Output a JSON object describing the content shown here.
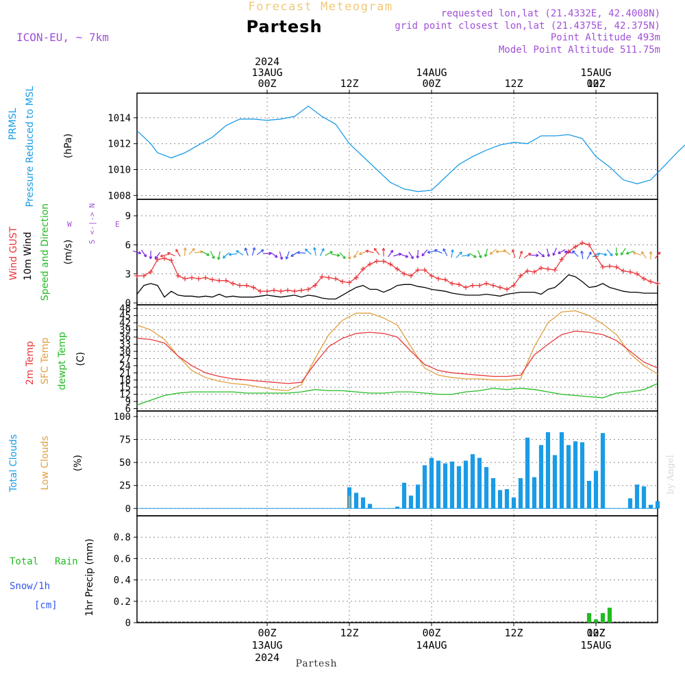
{
  "header": {
    "subtitle": "Forecast Meteogram",
    "location": "Partesh",
    "model": "ICON-EU, ~ 7km",
    "requested": "requested lon,lat (21.4332E, 42.4008N)",
    "grid_point": "grid point closest lon,lat (21.4375E, 42.375N)",
    "point_altitude": "Point Altitude 493m",
    "model_altitude": "Model Point Altitude 511.75m",
    "footer_location": "Partesh",
    "watermark": "by Angel"
  },
  "colors": {
    "pressure": "#1a9be6",
    "gust": "#e8383c",
    "wind": "#000000",
    "temp": "#e8383c",
    "sfc": "#e0a040",
    "dewpt": "#22bb22",
    "clouds": "#1a9be6",
    "low_clouds": "#e0a040",
    "rain": "#22bb22",
    "snow": "#3355ee",
    "label_purple": "#a050d8",
    "grid": "#888888"
  },
  "time_axis": {
    "top_labels": [
      {
        "lines": [
          "2024",
          "13AUG",
          "00Z"
        ]
      },
      {
        "lines": [
          "12Z"
        ]
      },
      {
        "lines": [
          "14AUG",
          "00Z"
        ]
      },
      {
        "lines": [
          "12Z"
        ]
      },
      {
        "lines": [
          "15AUG",
          "00Z"
        ]
      },
      {
        "lines": [
          "12Z"
        ]
      }
    ],
    "bottom_labels": [
      {
        "lines": [
          "00Z",
          "13AUG",
          "2024"
        ]
      },
      {
        "lines": [
          "12Z"
        ]
      },
      {
        "lines": [
          "00Z",
          "14AUG"
        ]
      },
      {
        "lines": [
          "12Z"
        ]
      },
      {
        "lines": [
          "00Z",
          "15AUG"
        ]
      },
      {
        "lines": [
          "12Z"
        ]
      }
    ]
  },
  "panel_labels": {
    "pressure": {
      "l1": "PRMSL",
      "l2": "Pressure Reduced to MSL",
      "unit": "(hPa)"
    },
    "wind": {
      "gust": "Wind GUST",
      "wind": "10m Wind",
      "dir": "Speed and Direction",
      "unit": "(m/s)",
      "compass_n": "N",
      "compass_s": "S",
      "compass_w": "W",
      "compass_e": "E",
      "compass_mid": "<-|->"
    },
    "temp": {
      "t2m": "2m Temp",
      "sfc": "SFC Temp",
      "dew": "dewpt Temp",
      "unit": "(C)"
    },
    "clouds": {
      "total": "Total Clouds",
      "low": "Low Clouds",
      "unit": "(%)"
    },
    "precip": {
      "rain_a": "Total",
      "rain_b": "Rain",
      "snow": "Snow/1h",
      "snow_unit": "[cm]",
      "label": "1hr Precip (mm)"
    }
  },
  "chart_data": [
    {
      "type": "line",
      "title": "PRMSL Pressure Reduced to MSL",
      "ylabel": "hPa",
      "ylim": [
        1007.7,
        1015.9
      ],
      "yticks": [
        1008,
        1010,
        1012,
        1014
      ],
      "xlim_hours": [
        -19,
        57
      ],
      "series": [
        {
          "name": "PRMSL",
          "x": [
            -19,
            -17,
            -16,
            -14,
            -12,
            -10,
            -8,
            -6,
            -4,
            -2,
            0,
            2,
            4,
            5,
            6,
            8,
            10,
            12,
            14,
            16,
            18,
            20,
            22,
            24,
            26,
            28,
            30,
            32,
            34,
            36,
            38,
            40,
            42,
            44,
            46,
            48,
            50,
            52,
            54,
            56,
            58,
            60,
            62,
            64,
            66,
            68,
            70,
            72,
            74,
            76,
            78,
            80,
            82,
            84,
            86,
            88,
            90,
            92,
            94,
            95,
            96,
            97
          ],
          "values": [
            1013.0,
            1012.0,
            1011.3,
            1010.9,
            1011.3,
            1011.9,
            1012.5,
            1013.4,
            1013.9,
            1013.9,
            1013.8,
            1013.9,
            1014.1,
            1014.5,
            1014.9,
            1014.1,
            1013.5,
            1012.0,
            1011.0,
            1010.0,
            1009.0,
            1008.5,
            1008.3,
            1008.4,
            1009.4,
            1010.4,
            1011.0,
            1011.5,
            1011.9,
            1012.1,
            1012.0,
            1012.6,
            1012.6,
            1012.7,
            1012.4,
            1011.0,
            1010.2,
            1009.2,
            1008.9,
            1009.2,
            1010.3,
            1011.4,
            1012.4,
            1013.0,
            1013.3,
            1013.6,
            1013.9,
            1014.5,
            1015.3,
            1015.3,
            1015.2,
            1014.6,
            1013.7,
            1012.9,
            1012.1,
            1012.3,
            1013.6,
            1013.1,
            1013.2,
            1013.3,
            1013.4,
            1013.4
          ]
        }
      ]
    },
    {
      "type": "line",
      "title": "Wind GUST / 10m Wind Speed and Direction",
      "ylabel": "m/s",
      "ylim": [
        -0.2,
        10.7
      ],
      "yticks": [
        0,
        3,
        6,
        9
      ],
      "xlim_hours": [
        -19,
        57
      ],
      "series": [
        {
          "name": "Wind GUST",
          "x": [
            -19,
            -18,
            -17,
            -16,
            -15,
            -14,
            -13,
            -12,
            -11,
            -10,
            -9,
            -8,
            -7,
            -6,
            -5,
            -4,
            -3,
            -2,
            -1,
            0,
            1,
            2,
            3,
            4,
            5,
            6,
            7,
            8,
            9,
            10,
            11,
            12,
            13,
            14,
            15,
            16,
            17,
            18,
            19,
            20,
            21,
            22,
            23,
            24,
            25,
            26,
            27,
            28,
            29,
            30,
            31,
            32,
            33,
            34,
            35,
            36,
            37,
            38,
            39,
            40,
            41,
            42,
            43,
            44,
            45,
            46,
            47,
            48,
            49,
            50,
            51,
            52,
            53,
            54,
            55,
            56,
            57
          ],
          "values": [
            2.8,
            2.8,
            3.2,
            4.5,
            4.6,
            4.4,
            2.8,
            2.5,
            2.6,
            2.5,
            2.6,
            2.4,
            2.3,
            2.3,
            2.0,
            1.8,
            1.8,
            1.6,
            1.2,
            1.2,
            1.3,
            1.2,
            1.3,
            1.2,
            1.3,
            1.4,
            1.8,
            2.7,
            2.6,
            2.5,
            2.2,
            2.1,
            2.6,
            3.5,
            4.0,
            4.3,
            4.3,
            4.0,
            3.5,
            3.0,
            2.8,
            3.4,
            3.4,
            2.8,
            2.5,
            2.4,
            2.0,
            1.9,
            1.6,
            1.8,
            1.8,
            2.0,
            1.8,
            1.6,
            1.4,
            1.8,
            2.8,
            3.3,
            3.2,
            3.6,
            3.5,
            3.4,
            4.5,
            5.3,
            5.8,
            6.2,
            6.0,
            4.8,
            3.7,
            3.8,
            3.7,
            3.3,
            3.2,
            3.0,
            2.5,
            2.2,
            2.0
          ]
        },
        {
          "name": "10m Wind",
          "x": [
            -19,
            -18,
            -17,
            -16,
            -15,
            -14,
            -13,
            -12,
            -11,
            -10,
            -9,
            -8,
            -7,
            -6,
            -5,
            -4,
            -3,
            -2,
            -1,
            0,
            1,
            2,
            3,
            4,
            5,
            6,
            7,
            8,
            9,
            10,
            11,
            12,
            13,
            14,
            15,
            16,
            17,
            18,
            19,
            20,
            21,
            22,
            23,
            24,
            25,
            26,
            27,
            28,
            29,
            30,
            31,
            32,
            33,
            34,
            35,
            36,
            37,
            38,
            39,
            40,
            41,
            42,
            43,
            44,
            45,
            46,
            47,
            48,
            49,
            50,
            51,
            52,
            53,
            54,
            55,
            56,
            57
          ],
          "values": [
            0.9,
            1.8,
            2.0,
            1.8,
            0.6,
            1.2,
            0.8,
            0.7,
            0.7,
            0.6,
            0.7,
            0.6,
            0.9,
            0.6,
            0.7,
            0.6,
            0.6,
            0.6,
            0.7,
            0.8,
            0.7,
            0.6,
            0.7,
            0.8,
            0.6,
            0.8,
            0.7,
            0.5,
            0.4,
            0.4,
            0.8,
            1.2,
            1.6,
            1.8,
            1.4,
            1.4,
            1.1,
            1.4,
            1.8,
            1.9,
            1.9,
            1.7,
            1.6,
            1.4,
            1.3,
            1.2,
            1.0,
            0.9,
            0.8,
            0.8,
            0.8,
            0.9,
            0.8,
            0.7,
            0.9,
            1.0,
            1.1,
            1.1,
            1.1,
            0.9,
            1.4,
            1.6,
            2.2,
            2.9,
            2.7,
            2.2,
            1.6,
            1.7,
            2.0,
            1.6,
            1.4,
            1.2,
            1.1,
            1.1,
            1.0,
            1.0,
            1.0
          ]
        }
      ]
    },
    {
      "type": "line",
      "title": "2m Temp / SFC Temp / dewpt Temp",
      "ylabel": "C",
      "ylim": [
        5,
        49.5
      ],
      "yticks": [
        6,
        9,
        12,
        15,
        18,
        21,
        24,
        27,
        30,
        33,
        36,
        39,
        42,
        45,
        48
      ],
      "xlim_hours": [
        -19,
        57
      ],
      "series": [
        {
          "name": "2m Temp",
          "x": [
            -19,
            -17,
            -15,
            -13,
            -11,
            -9,
            -7,
            -5,
            -3,
            -1,
            1,
            3,
            5,
            7,
            9,
            11,
            13,
            15,
            17,
            19,
            21,
            23,
            25,
            27,
            29,
            31,
            33,
            35,
            37,
            39,
            41,
            43,
            45,
            47,
            49,
            51,
            53,
            55,
            57
          ],
          "values": [
            35.5,
            35.0,
            33.5,
            28.0,
            24.0,
            21.0,
            19.5,
            18.5,
            18.0,
            17.5,
            17.0,
            16.5,
            17.0,
            25.0,
            32.0,
            35.5,
            37.5,
            38.0,
            37.5,
            36.0,
            30.0,
            24.5,
            22.0,
            21.0,
            20.5,
            20.0,
            19.5,
            19.5,
            20.0,
            28.5,
            33.0,
            37.0,
            38.5,
            38.0,
            37.0,
            34.5,
            30.0,
            25.5,
            23.0
          ]
        },
        {
          "name": "SFC Temp",
          "x": [
            -19,
            -17,
            -15,
            -13,
            -11,
            -9,
            -7,
            -5,
            -3,
            -1,
            1,
            3,
            5,
            7,
            9,
            11,
            13,
            15,
            17,
            19,
            21,
            23,
            25,
            27,
            29,
            31,
            33,
            35,
            37,
            39,
            41,
            43,
            45,
            47,
            49,
            51,
            53,
            55,
            57
          ],
          "values": [
            41.0,
            39.0,
            35.0,
            28.0,
            22.0,
            19.0,
            17.5,
            16.5,
            16.0,
            15.0,
            14.0,
            13.5,
            16.0,
            27.0,
            37.0,
            43.0,
            46.0,
            46.0,
            44.0,
            41.0,
            32.0,
            23.0,
            20.0,
            19.0,
            18.5,
            18.5,
            18.0,
            18.0,
            18.5,
            32.0,
            42.0,
            46.5,
            47.0,
            45.0,
            41.5,
            37.0,
            29.0,
            24.0,
            20.5
          ]
        },
        {
          "name": "dewpt Temp",
          "x": [
            -19,
            -17,
            -15,
            -13,
            -11,
            -9,
            -7,
            -5,
            -3,
            -1,
            1,
            3,
            5,
            7,
            9,
            11,
            13,
            15,
            17,
            19,
            21,
            23,
            25,
            27,
            29,
            31,
            33,
            35,
            37,
            39,
            41,
            43,
            45,
            47,
            49,
            51,
            53,
            55,
            57
          ],
          "values": [
            7.5,
            9.5,
            11.5,
            12.5,
            13.0,
            13.0,
            13.0,
            13.0,
            12.5,
            12.5,
            12.5,
            12.5,
            13.0,
            14.0,
            13.5,
            13.5,
            13.0,
            12.5,
            12.5,
            13.0,
            13.0,
            12.5,
            12.0,
            12.0,
            13.0,
            13.5,
            14.5,
            14.0,
            14.5,
            14.0,
            13.0,
            12.0,
            11.5,
            11.0,
            10.5,
            12.5,
            13.0,
            14.0,
            16.5
          ]
        }
      ]
    },
    {
      "type": "bar",
      "title": "Total Clouds / Low Clouds",
      "ylabel": "%",
      "ylim": [
        -8,
        106
      ],
      "yticks": [
        0,
        25,
        50,
        75,
        100
      ],
      "xlim_hours": [
        -19,
        57
      ],
      "x": [
        12,
        13,
        14,
        15,
        16,
        17,
        18,
        19,
        20,
        21,
        22,
        23,
        24,
        25,
        26,
        27,
        28,
        29,
        30,
        31,
        32,
        33,
        34,
        35,
        36,
        37,
        38,
        39,
        40,
        41,
        42,
        43,
        44,
        45,
        46,
        47,
        48,
        49,
        50,
        51,
        52,
        53,
        54,
        55,
        56,
        57
      ],
      "series": [
        {
          "name": "Total Clouds",
          "values": [
            23,
            17,
            12,
            5,
            0,
            0,
            0,
            2,
            28,
            14,
            26,
            47,
            55,
            52,
            49,
            51,
            46,
            52,
            59,
            55,
            45,
            33,
            20,
            21,
            12,
            33,
            77,
            34,
            69,
            83,
            58,
            83,
            69,
            73,
            72,
            30,
            41,
            82,
            0,
            0,
            0,
            11,
            26,
            24,
            4,
            8
          ]
        },
        {
          "name": "Low Clouds",
          "values": [
            14,
            0,
            0,
            0,
            0,
            0,
            0,
            0,
            0,
            0,
            0,
            0,
            0,
            0,
            0,
            0,
            0,
            0,
            0,
            0,
            0,
            0,
            0,
            0,
            0,
            0,
            0,
            0,
            0,
            0,
            0,
            0,
            0,
            0,
            0,
            0,
            0,
            0,
            0,
            0,
            0,
            0,
            0,
            0,
            0,
            0
          ]
        }
      ]
    },
    {
      "type": "bar",
      "title": "Total Rain / Snow/1h - 1hr Precip",
      "ylabel": "1hr Precip (mm)",
      "ylim": [
        0,
        1.0
      ],
      "yticks": [
        0,
        0.2,
        0.4,
        0.6,
        0.8
      ],
      "xlim_hours": [
        -19,
        57
      ],
      "x": [
        47,
        48,
        49,
        50
      ],
      "series": [
        {
          "name": "Total Rain",
          "values": [
            0.09,
            0.03,
            0.09,
            0.14
          ]
        }
      ]
    }
  ]
}
